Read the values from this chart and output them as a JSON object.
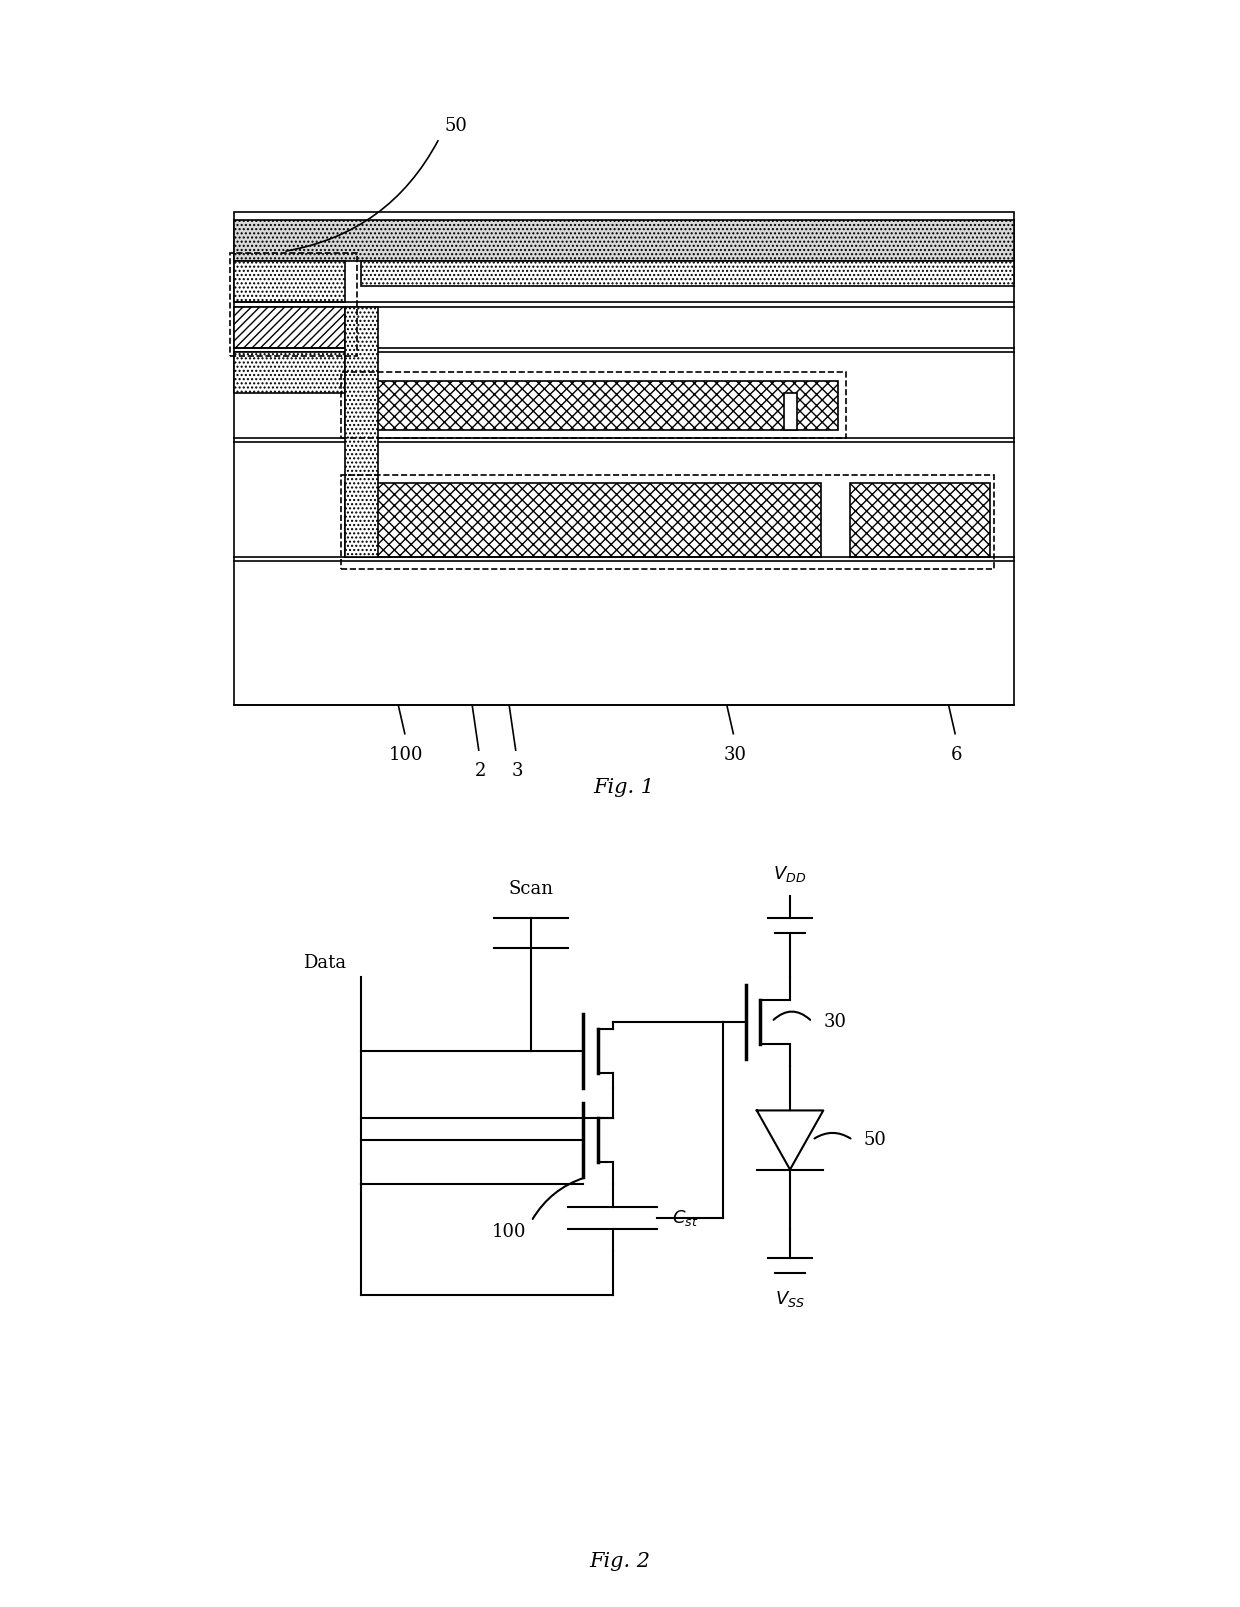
{
  "bg_color": "#ffffff",
  "line_color": "#000000",
  "fig1_label": "Fig. 1",
  "fig2_label": "Fig. 2",
  "labels_fig1": [
    "50",
    "100",
    "2",
    "3",
    "30",
    "6"
  ],
  "circuit_labels": [
    "Data",
    "Scan",
    "V_{DD}",
    "V_{SS}",
    "100",
    "C_{st}",
    "30",
    "50"
  ]
}
